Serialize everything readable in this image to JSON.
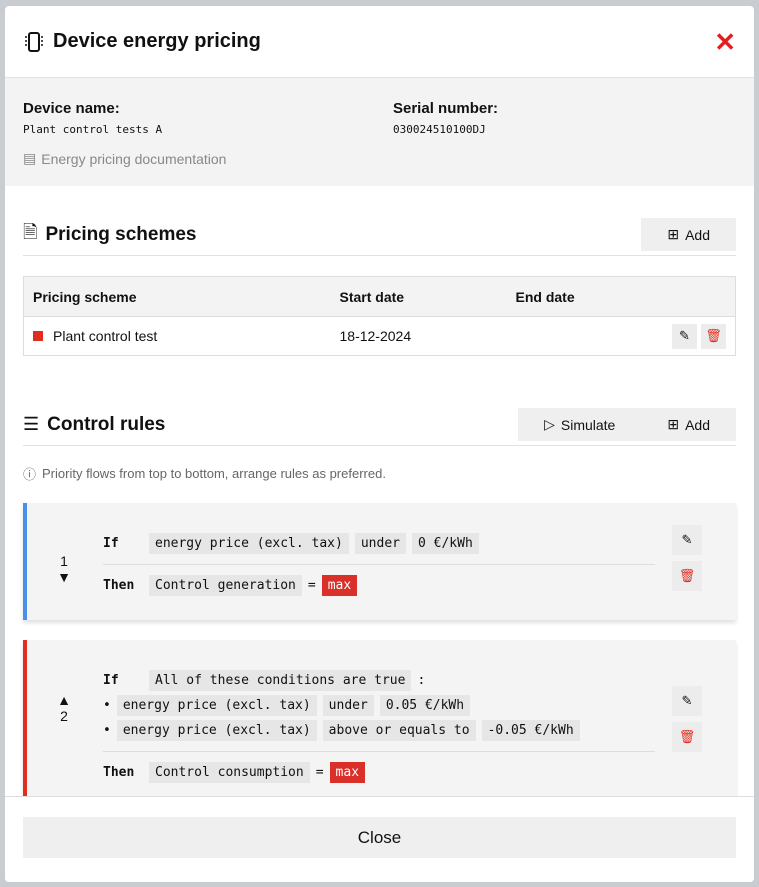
{
  "header": {
    "title": "Device energy pricing",
    "icon": "chip-icon",
    "close_icon": "close-icon"
  },
  "device": {
    "name_label": "Device name:",
    "name": "Plant control tests A",
    "serial_label": "Serial number:",
    "serial": "030024510100DJ",
    "doc_link": "Energy pricing documentation"
  },
  "pricing": {
    "title": "Pricing schemes",
    "add": "Add",
    "columns": [
      "Pricing scheme",
      "Start date",
      "End date"
    ],
    "rows": [
      {
        "name": "Plant control test",
        "start": "18-12-2024",
        "end": "",
        "color": "#e02d20"
      }
    ]
  },
  "rules": {
    "title": "Control rules",
    "simulate": "Simulate",
    "add": "Add",
    "note": "Priority flows from top to bottom, arrange rules as preferred.",
    "if": "If",
    "then": "Then",
    "eq": "=",
    "items": [
      {
        "num": "1",
        "color": "#4a90e8",
        "cond": [
          "energy price (excl. tax)",
          "under",
          "0 €/kWh"
        ],
        "target": "Control generation",
        "value": "max"
      },
      {
        "num": "2",
        "color": "#e02d20",
        "group": "All of these conditions are true",
        "colon": ":",
        "conds": [
          [
            "energy price (excl. tax)",
            "under",
            "0.05 €/kWh"
          ],
          [
            "energy price (excl. tax)",
            "above or equals to",
            "-0.05 €/kWh"
          ]
        ],
        "target": "Control consumption",
        "value": "max"
      }
    ]
  },
  "footer": {
    "close": "Close"
  }
}
